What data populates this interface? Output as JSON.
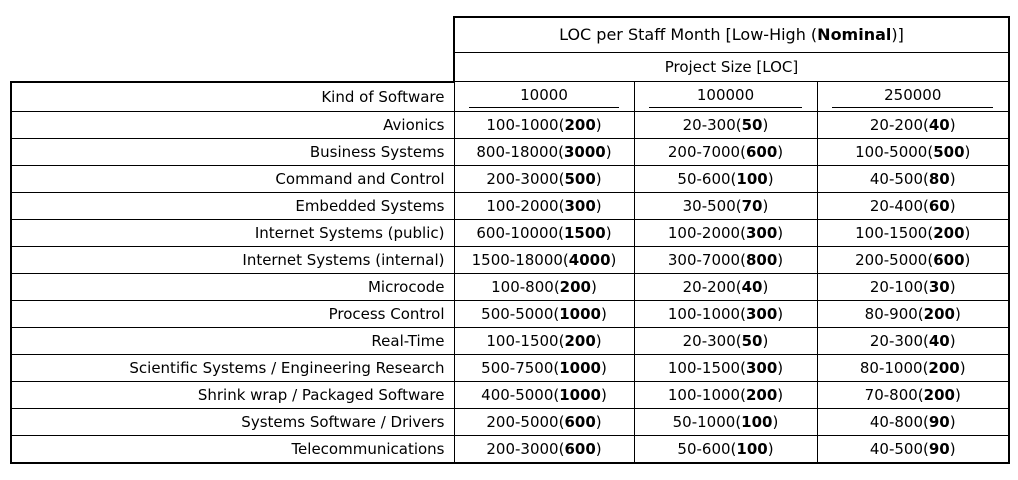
{
  "chart_data": {
    "type": "table",
    "title_prefix": "LOC per Staff Month [Low-High (",
    "title_bold": "Nominal",
    "title_suffix": ")]",
    "subtitle": "Project Size [LOC]",
    "row_header": "Kind of Software",
    "columns": [
      "10000",
      "100000",
      "250000"
    ],
    "punct": {
      "open": "(",
      "close": ")"
    },
    "rows": [
      {
        "name": "Avionics",
        "cells": [
          {
            "range": "100-1000",
            "nominal": "200"
          },
          {
            "range": "20-300",
            "nominal": "50"
          },
          {
            "range": "20-200",
            "nominal": "40"
          }
        ]
      },
      {
        "name": "Business Systems",
        "cells": [
          {
            "range": "800-18000",
            "nominal": "3000"
          },
          {
            "range": "200-7000",
            "nominal": "600"
          },
          {
            "range": "100-5000",
            "nominal": "500"
          }
        ]
      },
      {
        "name": "Command and Control",
        "cells": [
          {
            "range": "200-3000",
            "nominal": "500"
          },
          {
            "range": "50-600",
            "nominal": "100"
          },
          {
            "range": "40-500",
            "nominal": "80"
          }
        ]
      },
      {
        "name": "Embedded Systems",
        "cells": [
          {
            "range": "100-2000",
            "nominal": "300"
          },
          {
            "range": "30-500",
            "nominal": "70"
          },
          {
            "range": "20-400",
            "nominal": "60"
          }
        ]
      },
      {
        "name": "Internet Systems (public)",
        "cells": [
          {
            "range": "600-10000",
            "nominal": "1500"
          },
          {
            "range": "100-2000",
            "nominal": "300"
          },
          {
            "range": "100-1500",
            "nominal": "200"
          }
        ]
      },
      {
        "name": "Internet Systems (internal)",
        "cells": [
          {
            "range": "1500-18000",
            "nominal": "4000"
          },
          {
            "range": "300-7000",
            "nominal": "800"
          },
          {
            "range": "200-5000",
            "nominal": "600"
          }
        ]
      },
      {
        "name": "Microcode",
        "cells": [
          {
            "range": "100-800",
            "nominal": "200"
          },
          {
            "range": "20-200",
            "nominal": "40"
          },
          {
            "range": "20-100",
            "nominal": "30"
          }
        ]
      },
      {
        "name": "Process Control",
        "cells": [
          {
            "range": "500-5000",
            "nominal": "1000"
          },
          {
            "range": "100-1000",
            "nominal": "300"
          },
          {
            "range": "80-900",
            "nominal": "200"
          }
        ]
      },
      {
        "name": "Real-Time",
        "cells": [
          {
            "range": "100-1500",
            "nominal": "200"
          },
          {
            "range": "20-300",
            "nominal": "50"
          },
          {
            "range": "20-300",
            "nominal": "40"
          }
        ]
      },
      {
        "name": "Scientific Systems / Engineering Research",
        "cells": [
          {
            "range": "500-7500",
            "nominal": "1000"
          },
          {
            "range": "100-1500",
            "nominal": "300"
          },
          {
            "range": "80-1000",
            "nominal": "200"
          }
        ]
      },
      {
        "name": "Shrink wrap / Packaged Software",
        "cells": [
          {
            "range": "400-5000",
            "nominal": "1000"
          },
          {
            "range": "100-1000",
            "nominal": "200"
          },
          {
            "range": "70-800",
            "nominal": "200"
          }
        ]
      },
      {
        "name": "Systems Software / Drivers",
        "cells": [
          {
            "range": "200-5000",
            "nominal": "600"
          },
          {
            "range": "50-1000",
            "nominal": "100"
          },
          {
            "range": "40-800",
            "nominal": "90"
          }
        ]
      },
      {
        "name": "Telecommunications",
        "cells": [
          {
            "range": "200-3000",
            "nominal": "600"
          },
          {
            "range": "50-600",
            "nominal": "100"
          },
          {
            "range": "40-500",
            "nominal": "90"
          }
        ]
      }
    ]
  }
}
